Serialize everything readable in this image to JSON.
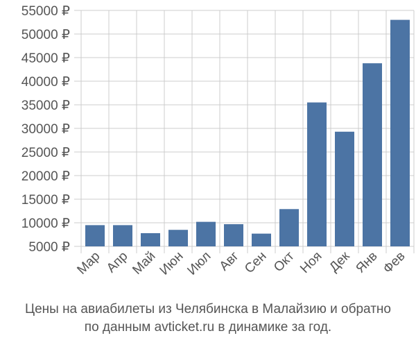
{
  "chart_data": {
    "type": "bar",
    "categories": [
      "Мар",
      "Апр",
      "Май",
      "Июн",
      "Июл",
      "Авг",
      "Сен",
      "Окт",
      "Ноя",
      "Дек",
      "Янв",
      "Фев"
    ],
    "values": [
      9500,
      9500,
      7800,
      8500,
      10200,
      9700,
      7700,
      12900,
      35500,
      29300,
      43800,
      53000
    ],
    "ylim": [
      5000,
      55000
    ],
    "yticks": [
      5000,
      10000,
      15000,
      20000,
      25000,
      30000,
      35000,
      40000,
      45000,
      50000,
      55000
    ],
    "ytick_labels": [
      "5000 ₽",
      "10000 ₽",
      "15000 ₽",
      "20000 ₽",
      "25000 ₽",
      "30000 ₽",
      "35000 ₽",
      "40000 ₽",
      "45000 ₽",
      "50000 ₽",
      "55000 ₽"
    ],
    "grid": true,
    "bar_color": "#4c74a4",
    "grid_color": "#cccccc",
    "caption": [
      "Цены на авиабилеты из Челябинска в Малайзию и обратно",
      "по данным avticket.ru в динамике за год."
    ]
  }
}
